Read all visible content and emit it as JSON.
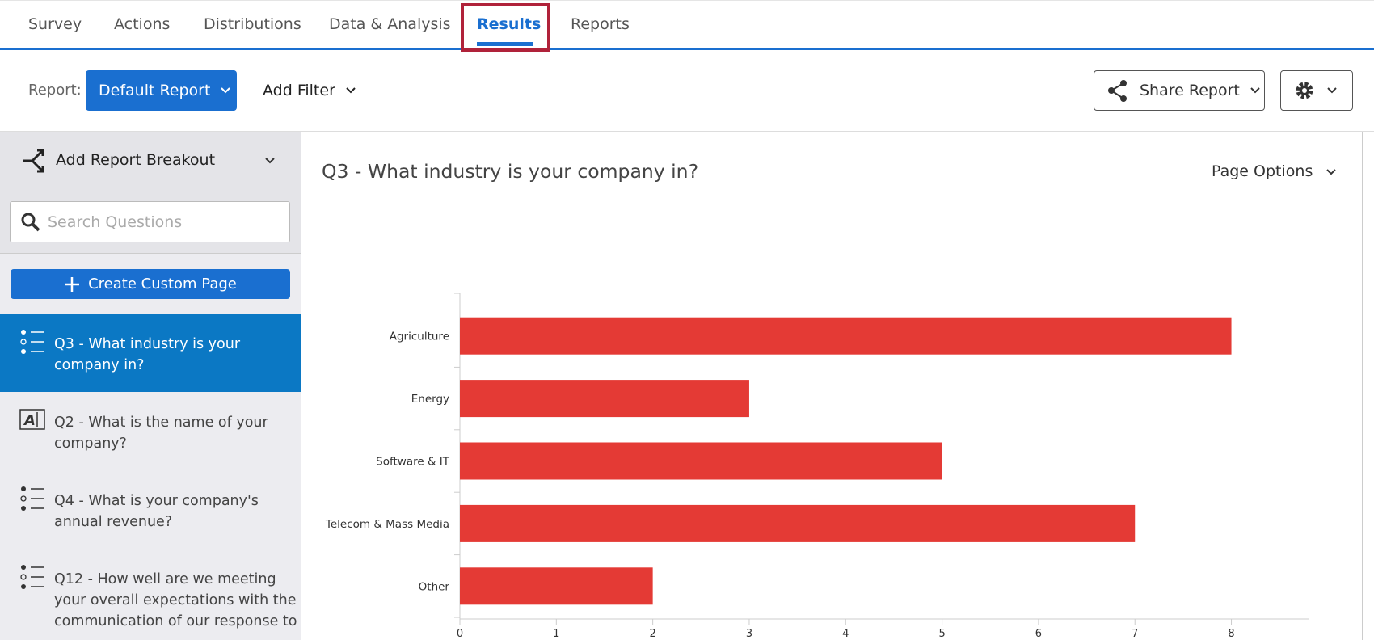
{
  "nav": {
    "tabs": [
      "Survey",
      "Actions",
      "Distributions",
      "Data & Analysis",
      "Results",
      "Reports"
    ],
    "active": "Results"
  },
  "toolbar": {
    "report_label": "Report:",
    "report_button": "Default Report",
    "add_filter": "Add Filter",
    "share_report": "Share Report"
  },
  "sidebar": {
    "breakout": "Add Report Breakout",
    "search_placeholder": "Search Questions",
    "create_page": "Create Custom Page",
    "items": [
      {
        "lines": [
          "Q3 - What industry is your",
          "company in?"
        ]
      },
      {
        "lines": [
          "Q2 - What is the name of your",
          "company?"
        ]
      },
      {
        "lines": [
          "Q4 - What is your company's",
          "annual revenue?"
        ]
      },
      {
        "lines": [
          "Q12 - How well are we meeting",
          "your overall expectations with the",
          "communication of our response to"
        ]
      }
    ]
  },
  "main": {
    "title": "Q3 - What industry is your company in?",
    "page_options": "Page Options"
  },
  "chart_data": {
    "type": "bar",
    "orientation": "horizontal",
    "categories": [
      "Agriculture",
      "Energy",
      "Software & IT",
      "Telecom & Mass Media",
      "Other"
    ],
    "values": [
      8,
      3,
      5,
      7,
      2
    ],
    "color": "#e43a35",
    "xlim": [
      0,
      8.8
    ],
    "xticks": [
      0,
      1,
      2,
      3,
      4,
      5,
      6,
      7,
      8
    ]
  }
}
